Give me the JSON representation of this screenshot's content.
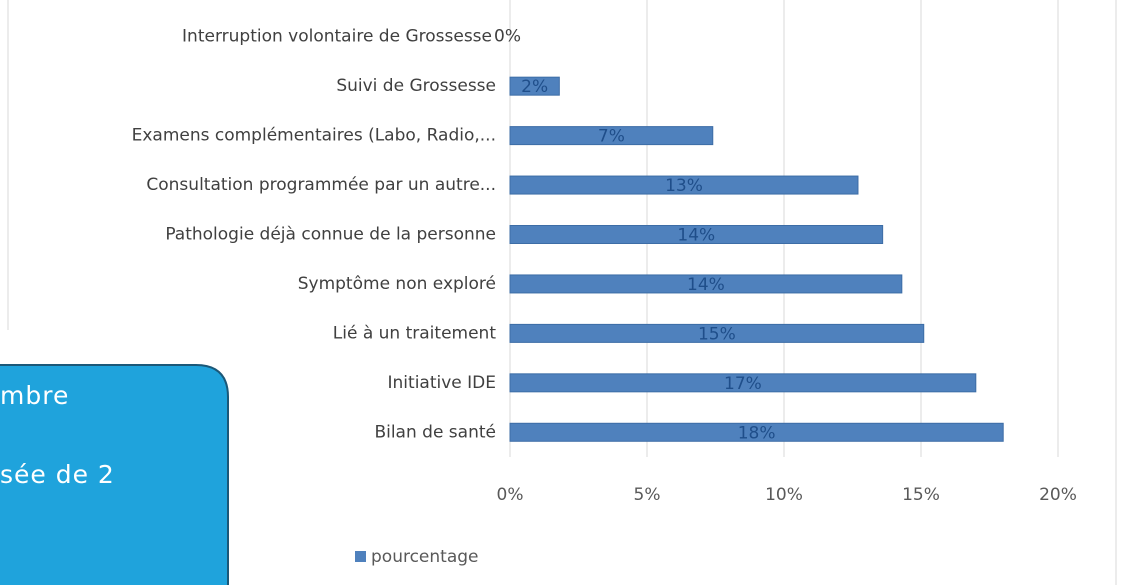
{
  "chart_data": {
    "type": "bar",
    "orientation": "horizontal",
    "categories": [
      "Interruption volontaire de Grossesse",
      "Suivi de Grossesse",
      "Examens complémentaires (Labo, Radio,...",
      "Consultation programmée par un autre...",
      "Pathologie déjà connue de la personne",
      "Symptôme non exploré",
      "Lié à un traitement",
      "Initiative IDE",
      "Bilan de santé"
    ],
    "series": [
      {
        "name": "pourcentage",
        "color": "#4f81bd",
        "values": [
          0,
          1.8,
          7.4,
          12.7,
          13.6,
          14.3,
          15.1,
          17.0,
          18.0
        ],
        "value_labels": [
          "0%",
          "2%",
          "7%",
          "13%",
          "14%",
          "14%",
          "15%",
          "17%",
          "18%"
        ]
      }
    ],
    "xlim": [
      0,
      20
    ],
    "xticks": [
      {
        "value": 0,
        "label": "0%"
      },
      {
        "value": 5,
        "label": "5%"
      },
      {
        "value": 10,
        "label": "10%"
      },
      {
        "value": 15,
        "label": "15%"
      },
      {
        "value": 20,
        "label": "20%"
      }
    ],
    "grid": true,
    "legend": "bottom"
  },
  "overlay": {
    "lines": [
      "mbre",
      "sée de 2"
    ]
  }
}
